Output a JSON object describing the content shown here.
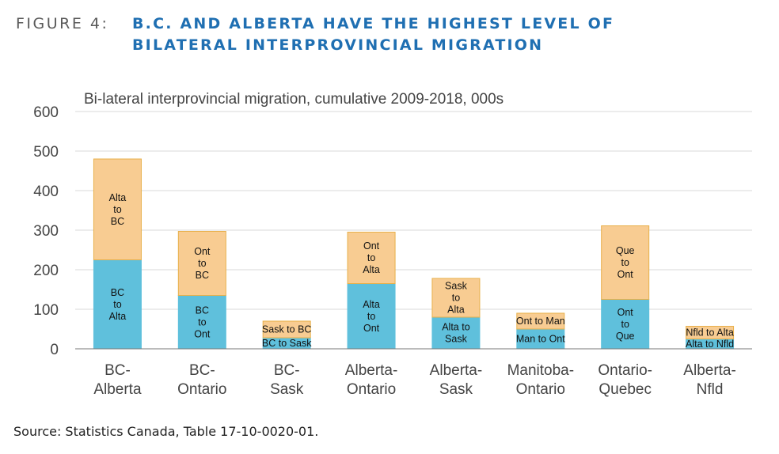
{
  "figure": {
    "label": "FIGURE 4:",
    "title_line1": "B.C. AND ALBERTA HAVE THE HIGHEST LEVEL OF",
    "title_line2": "BILATERAL INTERPROVINCIAL MIGRATION",
    "source": "Source:  Statistics Canada, Table 17-10-0020-01."
  },
  "colors": {
    "lower": "#5fc0dc",
    "upper": "#f8cc92",
    "upper_edge": "#e8b04a",
    "grid": "#d9d9d9",
    "axis": "#777777"
  },
  "chart_data": {
    "type": "bar",
    "stacked": true,
    "title": "Bi-lateral interprovincial migration, cumulative 2009-2018, 000s",
    "xlabel": "",
    "ylabel": "",
    "ylim": [
      0,
      600
    ],
    "yticks": [
      0,
      100,
      200,
      300,
      400,
      500,
      600
    ],
    "grid": true,
    "categories": [
      [
        "BC-",
        "Alberta"
      ],
      [
        "BC-",
        "Ontario"
      ],
      [
        "BC-",
        "Sask"
      ],
      [
        "Alberta-",
        "Ontario"
      ],
      [
        "Alberta-",
        "Sask"
      ],
      [
        "Manitoba-",
        "Ontario"
      ],
      [
        "Ontario-",
        "Quebec"
      ],
      [
        "Alberta-",
        "Nfld"
      ]
    ],
    "series": [
      {
        "values": [
          225,
          135,
          28,
          165,
          80,
          50,
          125,
          25
        ],
        "labels": [
          [
            "BC",
            "to",
            "Alta"
          ],
          [
            "BC",
            "to",
            "Ont"
          ],
          [
            "BC to Sask"
          ],
          [
            "Alta",
            "to",
            "Ont"
          ],
          [
            "Alta to",
            "Sask"
          ],
          [
            "Man to Ont"
          ],
          [
            "Ont",
            "to",
            "Que"
          ],
          [
            "Alta to Nfld"
          ]
        ]
      },
      {
        "values": [
          255,
          162,
          42,
          130,
          98,
          40,
          186,
          32
        ],
        "labels": [
          [
            "Alta",
            "to",
            "BC"
          ],
          [
            "Ont",
            "to",
            "BC"
          ],
          [
            "Sask to BC"
          ],
          [
            "Ont",
            "to",
            "Alta"
          ],
          [
            "Sask",
            "to",
            "Alta"
          ],
          [
            "Ont to Man"
          ],
          [
            "Que",
            "to",
            "Ont"
          ],
          [
            "Nfld to Alta"
          ]
        ]
      }
    ]
  }
}
